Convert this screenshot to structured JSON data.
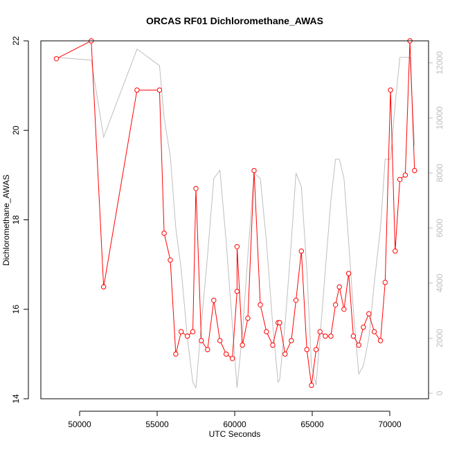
{
  "chart_data": {
    "type": "line",
    "title": "ORCAS RF01 Dichloromethane_AWAS",
    "xlabel": "UTC Seconds",
    "ylabel": "Dichloromethane_AWAS",
    "xlim": [
      47500,
      72500
    ],
    "ylim": [
      14,
      22
    ],
    "y2lim": [
      -200,
      12800
    ],
    "xticks": [
      50000,
      55000,
      60000,
      65000,
      70000
    ],
    "yticks": [
      14,
      16,
      18,
      20,
      22
    ],
    "y2ticks": [
      0,
      2000,
      4000,
      6000,
      8000,
      10000,
      12000
    ],
    "colors": {
      "primary": "#ff0000",
      "secondary": "#bebebe",
      "frame": "#000000"
    },
    "series": [
      {
        "axis": "left",
        "marker": "open-circle",
        "x": [
          48500,
          50750,
          51550,
          53700,
          55150,
          55450,
          55850,
          56200,
          56550,
          56950,
          57300,
          57500,
          57850,
          58250,
          58650,
          59050,
          59450,
          59850,
          60150,
          60150,
          60500,
          60850,
          61250,
          61650,
          62050,
          62450,
          62800,
          62900,
          63250,
          63650,
          63950,
          64300,
          64650,
          64950,
          65250,
          65500,
          65850,
          66200,
          66500,
          66750,
          67050,
          67350,
          67650,
          68000,
          68300,
          68650,
          69000,
          69400,
          69700,
          70050,
          70350,
          70650,
          71000,
          71300,
          71600
        ],
        "y": [
          21.6,
          22.0,
          16.5,
          20.9,
          20.9,
          17.7,
          17.1,
          15.0,
          15.5,
          15.4,
          15.5,
          18.7,
          15.3,
          15.1,
          16.2,
          15.3,
          15.0,
          14.9,
          16.4,
          17.4,
          15.2,
          15.8,
          19.1,
          16.1,
          15.5,
          15.2,
          15.7,
          15.7,
          15.0,
          15.3,
          16.2,
          17.3,
          15.1,
          14.3,
          15.1,
          15.5,
          15.4,
          15.4,
          16.1,
          16.5,
          16.0,
          16.8,
          15.4,
          15.2,
          15.6,
          15.9,
          15.5,
          15.3,
          16.6,
          20.9,
          17.3,
          18.9,
          19.0,
          22.0,
          19.1
        ]
      },
      {
        "axis": "right",
        "marker": "none",
        "x": [
          48500,
          50750,
          51550,
          53700,
          55150,
          55450,
          55850,
          56200,
          56550,
          56950,
          57300,
          57500,
          57850,
          58250,
          58650,
          59050,
          59450,
          59850,
          60150,
          60500,
          60850,
          61250,
          61650,
          62050,
          62450,
          62800,
          62900,
          63250,
          63650,
          63950,
          64300,
          64650,
          64950,
          65250,
          65500,
          65850,
          66200,
          66500,
          66750,
          67050,
          67350,
          67650,
          68000,
          68300,
          68650,
          69000,
          69400,
          69700,
          70050,
          70350,
          70650,
          71000,
          71300,
          71600
        ],
        "y": [
          12200,
          12100,
          9300,
          12500,
          11900,
          10000,
          8600,
          6000,
          4500,
          2000,
          400,
          200,
          2500,
          5000,
          7800,
          8100,
          5500,
          2500,
          200,
          2200,
          5000,
          8000,
          7800,
          5500,
          2500,
          400,
          500,
          2500,
          5500,
          8000,
          7500,
          4500,
          1000,
          300,
          2000,
          4500,
          7000,
          8500,
          8500,
          7800,
          5500,
          3000,
          700,
          1000,
          2000,
          4000,
          6000,
          8500,
          8500,
          10500,
          12200,
          12200,
          12200,
          9000
        ]
      }
    ]
  }
}
